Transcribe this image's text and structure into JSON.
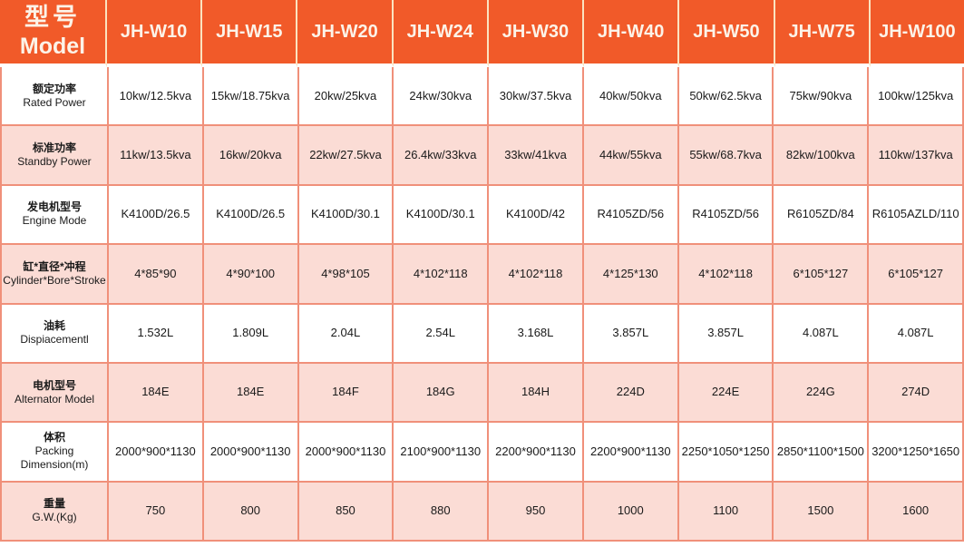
{
  "table": {
    "header": {
      "model_label_cn": "型号",
      "model_label_en": "Model",
      "columns": [
        "JH-W10",
        "JH-W15",
        "JH-W20",
        "JH-W24",
        "JH-W30",
        "JH-W40",
        "JH-W50",
        "JH-W75",
        "JH-W100"
      ]
    },
    "rows": [
      {
        "label_cn": "额定功率",
        "label_en": "Rated Power",
        "values": [
          "10kw/12.5kva",
          "15kw/18.75kva",
          "20kw/25kva",
          "24kw/30kva",
          "30kw/37.5kva",
          "40kw/50kva",
          "50kw/62.5kva",
          "75kw/90kva",
          "100kw/125kva"
        ]
      },
      {
        "label_cn": "标准功率",
        "label_en": "Standby Power",
        "values": [
          "11kw/13.5kva",
          "16kw/20kva",
          "22kw/27.5kva",
          "26.4kw/33kva",
          "33kw/41kva",
          "44kw/55kva",
          "55kw/68.7kva",
          "82kw/100kva",
          "110kw/137kva"
        ]
      },
      {
        "label_cn": "发电机型号",
        "label_en": "Engine Mode",
        "values": [
          "K4100D/26.5",
          "K4100D/26.5",
          "K4100D/30.1",
          "K4100D/30.1",
          "K4100D/42",
          "R4105ZD/56",
          "R4105ZD/56",
          "R6105ZD/84",
          "R6105AZLD/110"
        ]
      },
      {
        "label_cn": "缸*直径*冲程",
        "label_en": "Cylinder*Bore*Stroke",
        "values": [
          "4*85*90",
          "4*90*100",
          "4*98*105",
          "4*102*118",
          "4*102*118",
          "4*125*130",
          "4*102*118",
          "6*105*127",
          "6*105*127"
        ]
      },
      {
        "label_cn": "油耗",
        "label_en": "Dispiacementl",
        "values": [
          "1.532L",
          "1.809L",
          "2.04L",
          "2.54L",
          "3.168L",
          "3.857L",
          "3.857L",
          "4.087L",
          "4.087L"
        ]
      },
      {
        "label_cn": "电机型号",
        "label_en": "Alternator Model",
        "values": [
          "184E",
          "184E",
          "184F",
          "184G",
          "184H",
          "224D",
          "224E",
          "224G",
          "274D"
        ]
      },
      {
        "label_cn": "体积",
        "label_en": "Packing Dimension(m)",
        "values": [
          "2000*900*1130",
          "2000*900*1130",
          "2000*900*1130",
          "2100*900*1130",
          "2200*900*1130",
          "2200*900*1130",
          "2250*1050*1250",
          "2850*1100*1500",
          "3200*1250*1650"
        ]
      },
      {
        "label_cn": "重量",
        "label_en": "G.W.(Kg)",
        "values": [
          "750",
          "800",
          "850",
          "880",
          "950",
          "1000",
          "1100",
          "1500",
          "1600"
        ]
      }
    ],
    "colors": {
      "header_bg": "#F15A29",
      "header_text": "#FCF3E8",
      "header_divider": "#FBE3C0",
      "row_pink": "#FBDCD5",
      "row_white": "#FFFFFF",
      "border": "#F0907A",
      "body_text": "#1A1A1A"
    }
  }
}
